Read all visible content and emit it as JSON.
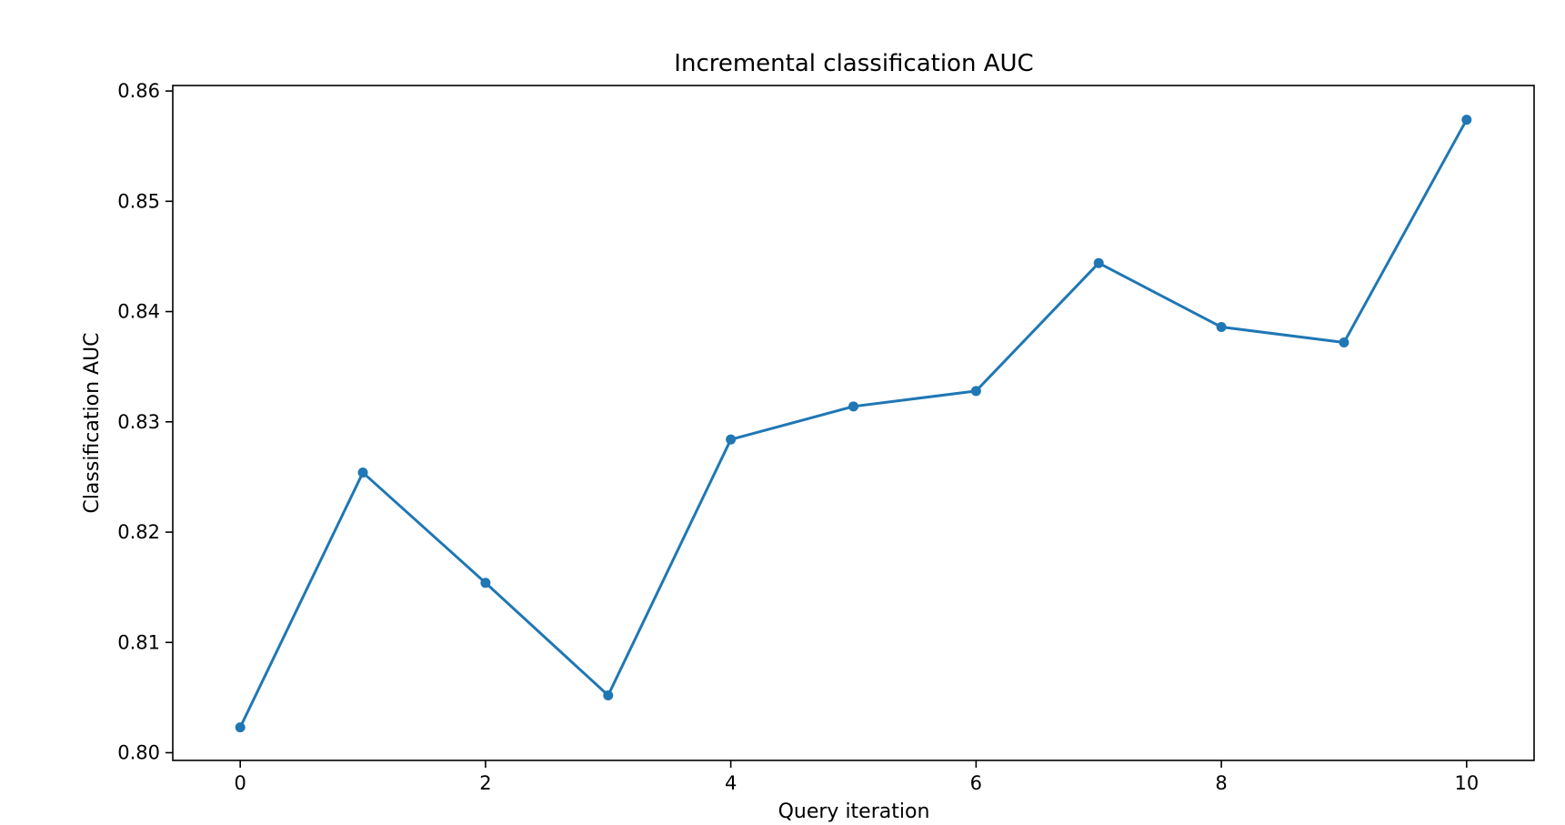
{
  "chart_data": {
    "type": "line",
    "title": "Incremental classification AUC",
    "xlabel": "Query iteration",
    "ylabel": "Classification AUC",
    "xlim": [
      -0.55,
      10.55
    ],
    "ylim": [
      0.7993,
      0.8605
    ],
    "xticks": [
      0,
      2,
      4,
      6,
      8,
      10
    ],
    "xtick_labels": [
      "0",
      "2",
      "4",
      "6",
      "8",
      "10"
    ],
    "yticks": [
      0.8,
      0.81,
      0.82,
      0.83,
      0.84,
      0.85,
      0.86
    ],
    "ytick_labels": [
      "0.80",
      "0.81",
      "0.82",
      "0.83",
      "0.84",
      "0.85",
      "0.86"
    ],
    "grid": false,
    "legend": "none",
    "series": [
      {
        "color": "#1f77b4",
        "marker": "circle",
        "x": [
          0,
          1,
          2,
          3,
          4,
          5,
          6,
          7,
          8,
          9,
          10
        ],
        "y": [
          0.8023,
          0.8254,
          0.8154,
          0.8052,
          0.8284,
          0.8314,
          0.8328,
          0.8444,
          0.8386,
          0.8372,
          0.8574
        ]
      }
    ]
  }
}
